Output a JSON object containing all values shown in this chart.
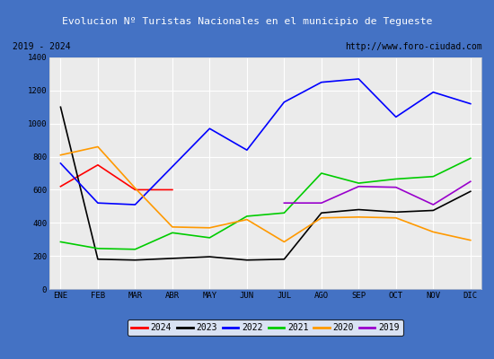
{
  "title": "Evolucion Nº Turistas Nacionales en el municipio de Tegueste",
  "subtitle_left": "2019 - 2024",
  "subtitle_right": "http://www.foro-ciudad.com",
  "x_labels": [
    "ENE",
    "FEB",
    "MAR",
    "ABR",
    "MAY",
    "JUN",
    "JUL",
    "AGO",
    "SEP",
    "OCT",
    "NOV",
    "DIC"
  ],
  "ylim": [
    0,
    1400
  ],
  "yticks": [
    0,
    200,
    400,
    600,
    800,
    1000,
    1200,
    1400
  ],
  "series": {
    "2024": {
      "color": "#ff0000",
      "values": [
        620,
        750,
        600,
        600,
        null,
        null,
        null,
        null,
        null,
        null,
        null,
        null
      ]
    },
    "2023": {
      "color": "#000000",
      "values": [
        1100,
        180,
        175,
        185,
        195,
        175,
        180,
        460,
        480,
        465,
        475,
        590
      ]
    },
    "2022": {
      "color": "#0000ff",
      "values": [
        760,
        520,
        510,
        740,
        970,
        840,
        1130,
        1250,
        1270,
        1040,
        1190,
        1120
      ]
    },
    "2021": {
      "color": "#00cc00",
      "values": [
        285,
        245,
        240,
        340,
        310,
        440,
        460,
        700,
        640,
        665,
        680,
        790
      ]
    },
    "2020": {
      "color": "#ff9900",
      "values": [
        810,
        860,
        610,
        375,
        370,
        420,
        285,
        430,
        435,
        430,
        345,
        295
      ]
    },
    "2019": {
      "color": "#9900cc",
      "values": [
        null,
        null,
        null,
        null,
        null,
        null,
        520,
        520,
        620,
        615,
        510,
        650
      ]
    }
  },
  "bg_color": "#ebebeb",
  "title_bg": "#4472c4",
  "title_color": "#ffffff",
  "grid_color": "#ffffff",
  "border_color": "#4472c4",
  "subtitle_bg": "#ffffff"
}
